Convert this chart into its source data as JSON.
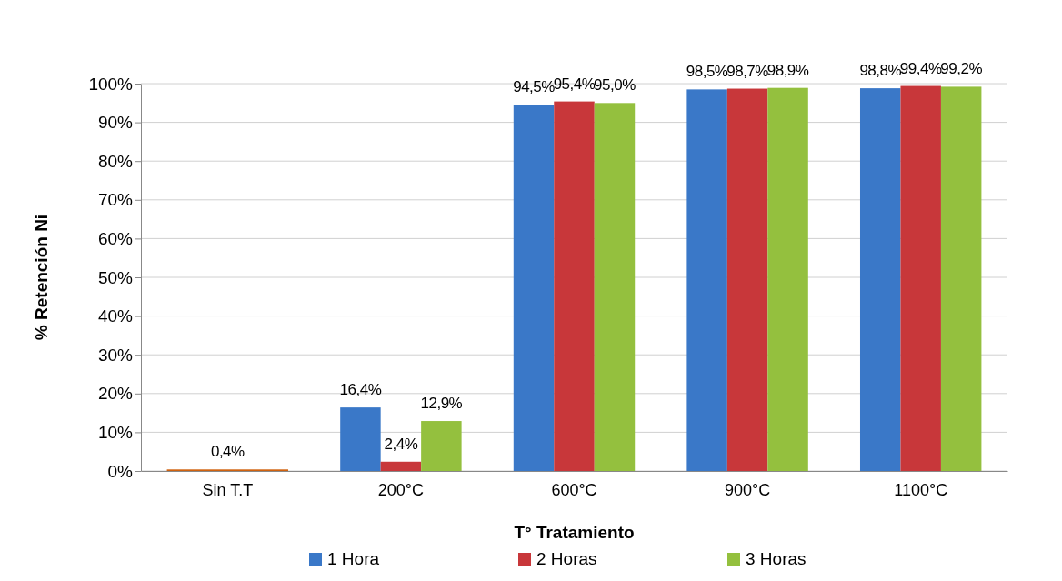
{
  "chart_data": {
    "type": "bar",
    "xlabel": "T° Tratamiento",
    "ylabel": "% Retención Ni",
    "categories": [
      "Sin T.T",
      "200°C",
      "600°C",
      "900°C",
      "1100°C"
    ],
    "series": [
      {
        "name": "1 Hora",
        "color": "#3a78c8",
        "values": [
          null,
          16.4,
          94.5,
          98.5,
          98.8
        ],
        "value_labels": [
          null,
          "16,4%",
          "94,5%",
          "98,5%",
          "98,8%"
        ]
      },
      {
        "name": "2 Horas",
        "color": "#c8373a",
        "values": [
          null,
          2.4,
          95.4,
          98.7,
          99.4
        ],
        "value_labels": [
          null,
          "2,4%",
          "95,4%",
          "98,7%",
          "99,4%"
        ]
      },
      {
        "name": "3 Horas",
        "color": "#94c03e",
        "values": [
          null,
          12.9,
          95.0,
          98.9,
          99.2
        ],
        "value_labels": [
          null,
          "12,9%",
          "95,0%",
          "98,9%",
          "99,2%"
        ]
      },
      {
        "color": "#d0620f",
        "values": [
          0.4,
          null,
          null,
          null,
          null
        ],
        "value_labels": [
          "0,4%",
          null,
          null,
          null,
          null
        ]
      }
    ],
    "ylim": [
      0,
      100
    ],
    "yticks": [
      {
        "value": 0,
        "label": "0%"
      },
      {
        "value": 10,
        "label": "10%"
      },
      {
        "value": 20,
        "label": "20%"
      },
      {
        "value": 30,
        "label": "30%"
      },
      {
        "value": 40,
        "label": "40%"
      },
      {
        "value": 50,
        "label": "50%"
      },
      {
        "value": 60,
        "label": "60%"
      },
      {
        "value": 70,
        "label": "70%"
      },
      {
        "value": 80,
        "label": "80%"
      },
      {
        "value": 90,
        "label": "90%"
      },
      {
        "value": 100,
        "label": "100%"
      }
    ],
    "grid": "y",
    "legend": "bottom"
  }
}
